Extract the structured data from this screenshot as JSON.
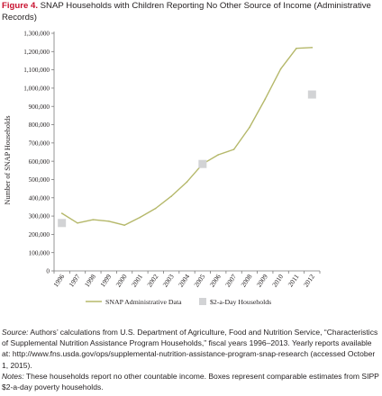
{
  "figure": {
    "label": "Figure 4.",
    "title": "SNAP Households with Children Reporting No Other Source of Income (Administrative Records)"
  },
  "colors": {
    "figure_label": "#c8102e",
    "line": "#b5b86a",
    "box": "#d2d3d5",
    "axis": "#7a7a7a"
  },
  "chart_data": {
    "type": "line",
    "ylabel": "Number of SNAP Households",
    "xlabel": "",
    "ylim": [
      0,
      1300000
    ],
    "y_ticks": [
      0,
      100000,
      200000,
      300000,
      400000,
      500000,
      600000,
      700000,
      800000,
      900000,
      1000000,
      1100000,
      1200000,
      1300000
    ],
    "y_tick_labels": [
      "0",
      "100,000",
      "200,000",
      "300,000",
      "400,000",
      "500,000",
      "600,000",
      "700,000",
      "800,000",
      "900,000",
      "1,000,000",
      "1,100,000",
      "1,200,000",
      "1,300,000"
    ],
    "categories": [
      "1996",
      "1997",
      "1998",
      "1999",
      "2000",
      "2001",
      "2002",
      "2003",
      "2004",
      "2005",
      "2006",
      "2007",
      "2008",
      "2009",
      "2010",
      "2011",
      "2012"
    ],
    "grid": false,
    "legend_position": "bottom",
    "series": [
      {
        "name": "SNAP Administrative Data",
        "kind": "line",
        "color": "#b5b86a",
        "values": [
          315000,
          262000,
          280000,
          272000,
          250000,
          293000,
          342000,
          408000,
          487000,
          585000,
          635000,
          665000,
          785000,
          940000,
          1105000,
          1218000,
          1222000
        ]
      },
      {
        "name": "$2-a-Day Households",
        "kind": "marker",
        "color": "#d2d3d5",
        "points": [
          {
            "x": "1996",
            "y": 262000
          },
          {
            "x": "2005",
            "y": 585000
          },
          {
            "x": "2012",
            "y": 965000
          }
        ]
      }
    ]
  },
  "notes": {
    "source_lead": "Source:",
    "source_text": " Authors’ calculations from U.S. Department of Agriculture, Food and Nutrition Service, “Characteristics of Supplemental Nutrition Assistance Program Households,” fiscal years 1996–2013. Yearly reports available at: http://www.fns.usda.gov/ops/supplemental-nutrition-assistance-program-snap-research (accessed October 1, 2015).",
    "notes_lead": "Notes:",
    "notes_text": " These households report no other countable income. Boxes represent comparable estimates from SIPP $2-a-day poverty households."
  }
}
